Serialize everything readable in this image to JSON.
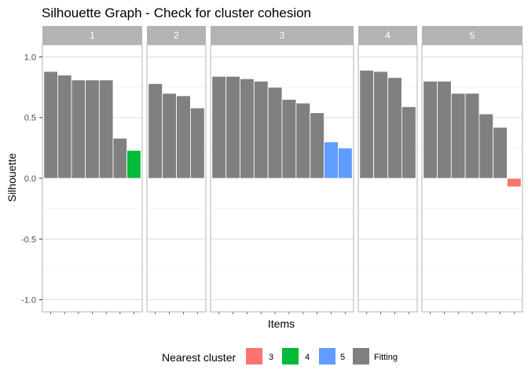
{
  "chart_data": {
    "type": "bar",
    "title": "Silhouette Graph - Check for cluster cohesion",
    "xlabel": "Items",
    "ylabel": "Silhouette",
    "ylim": [
      -1.1,
      1.1
    ],
    "yticks": [
      1.0,
      0.5,
      0.0,
      -0.5,
      -1.0
    ],
    "ytick_labels": [
      "1.0",
      "0.5",
      "0.0",
      "-0.5",
      "-1.0"
    ],
    "grid": true,
    "legend": {
      "position": "bottom",
      "title": "Nearest cluster",
      "entries": [
        {
          "label": "3",
          "color": "#F8766D"
        },
        {
          "label": "4",
          "color": "#00BA38"
        },
        {
          "label": "5",
          "color": "#619CFF"
        },
        {
          "label": "Fitting",
          "color": "#808080"
        }
      ]
    },
    "panels": [
      {
        "label": "1",
        "values": [
          0.88,
          0.85,
          0.81,
          0.81,
          0.81,
          0.33,
          0.23
        ],
        "categories": [
          "Fitting",
          "Fitting",
          "Fitting",
          "Fitting",
          "Fitting",
          "Fitting",
          "4"
        ]
      },
      {
        "label": "2",
        "values": [
          0.78,
          0.7,
          0.68,
          0.58
        ],
        "categories": [
          "Fitting",
          "Fitting",
          "Fitting",
          "Fitting"
        ]
      },
      {
        "label": "3",
        "values": [
          0.84,
          0.84,
          0.82,
          0.8,
          0.75,
          0.65,
          0.62,
          0.54,
          0.3,
          0.25
        ],
        "categories": [
          "Fitting",
          "Fitting",
          "Fitting",
          "Fitting",
          "Fitting",
          "Fitting",
          "Fitting",
          "Fitting",
          "5",
          "5"
        ]
      },
      {
        "label": "4",
        "values": [
          0.89,
          0.88,
          0.83,
          0.59
        ],
        "categories": [
          "Fitting",
          "Fitting",
          "Fitting",
          "Fitting"
        ]
      },
      {
        "label": "5",
        "values": [
          0.8,
          0.8,
          0.7,
          0.7,
          0.53,
          0.42,
          -0.07
        ],
        "categories": [
          "Fitting",
          "Fitting",
          "Fitting",
          "Fitting",
          "Fitting",
          "Fitting",
          "3"
        ]
      }
    ]
  }
}
